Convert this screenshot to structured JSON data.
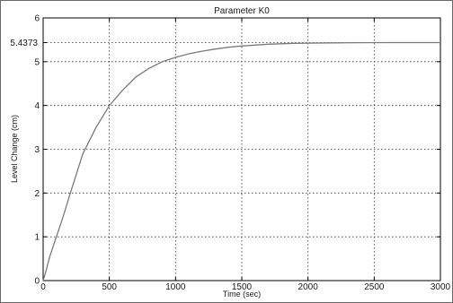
{
  "chart_data": {
    "type": "line",
    "title": "Parameter K0",
    "xlabel": "Time (sec)",
    "ylabel": "Level Change (cm)",
    "xlim": [
      0,
      3000
    ],
    "ylim": [
      0,
      6
    ],
    "xticks": [
      "0",
      "500",
      "1000",
      "1500",
      "2000",
      "2500",
      "3000"
    ],
    "yticks": [
      "0",
      "1",
      "2",
      "3",
      "4",
      "5",
      "6"
    ],
    "grid": true,
    "annotation": {
      "text": "5.4373",
      "y": 5.4373
    },
    "colors": {
      "line": "#7a7a7a",
      "grid": "#333333",
      "axes": "#000000"
    },
    "series": [
      {
        "x": [
          0,
          20,
          50,
          100,
          150,
          200,
          300,
          400,
          500,
          600,
          700,
          800,
          900,
          1000,
          1100,
          1200,
          1300,
          1400,
          1500,
          1600,
          1700,
          1800,
          1900,
          2000,
          2200,
          2400,
          2600,
          2800,
          3000
        ],
        "values": [
          0,
          0.2,
          0.55,
          1.0,
          1.45,
          1.95,
          2.9,
          3.5,
          4.0,
          4.35,
          4.65,
          4.85,
          5.0,
          5.1,
          5.18,
          5.24,
          5.29,
          5.33,
          5.36,
          5.38,
          5.4,
          5.41,
          5.42,
          5.425,
          5.43,
          5.434,
          5.436,
          5.437,
          5.4373
        ]
      }
    ]
  }
}
